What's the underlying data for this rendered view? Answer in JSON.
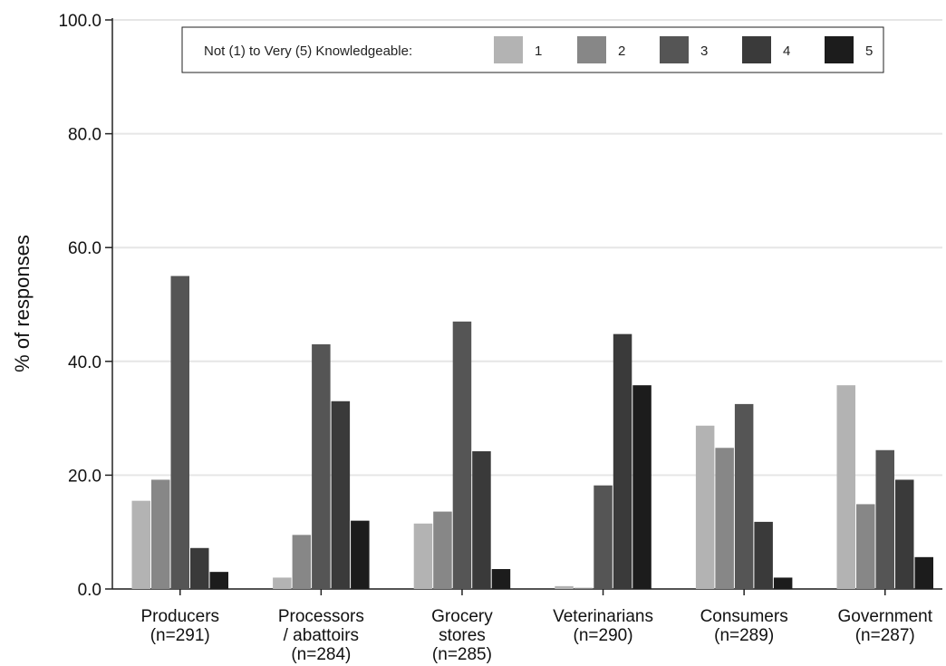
{
  "chart_data": {
    "type": "bar",
    "title": "",
    "xlabel": "",
    "ylabel": "% of responses",
    "ylim": [
      0,
      100
    ],
    "yticks": [
      "0.0",
      "20.0",
      "40.0",
      "60.0",
      "80.0",
      "100.0"
    ],
    "grid": true,
    "legend": {
      "title": "Not (1) to Very (5) Knowledgeable:",
      "placement": "top-center"
    },
    "categories": [
      [
        "Producers",
        "(n=291)"
      ],
      [
        "Processors",
        "/ abattoirs",
        "(n=284)"
      ],
      [
        "Grocery",
        "stores",
        "(n=285)"
      ],
      [
        "Veterinarians",
        "(n=290)"
      ],
      [
        "Consumers",
        "(n=289)"
      ],
      [
        "Government",
        "(n=287)"
      ]
    ],
    "series": [
      {
        "name": "1",
        "color": "#b3b3b3",
        "values": [
          15.5,
          2.0,
          11.5,
          0.5,
          28.7,
          35.8
        ]
      },
      {
        "name": "2",
        "color": "#878787",
        "values": [
          19.2,
          9.5,
          13.6,
          0.2,
          24.8,
          14.9
        ]
      },
      {
        "name": "3",
        "color": "#555555",
        "values": [
          55.0,
          43.0,
          47.0,
          18.2,
          32.5,
          24.4
        ]
      },
      {
        "name": "4",
        "color": "#3a3a3a",
        "values": [
          7.2,
          33.0,
          24.2,
          44.8,
          11.8,
          19.2
        ]
      },
      {
        "name": "5",
        "color": "#1c1c1c",
        "values": [
          3.0,
          12.0,
          3.5,
          35.8,
          2.0,
          5.6
        ]
      }
    ]
  }
}
